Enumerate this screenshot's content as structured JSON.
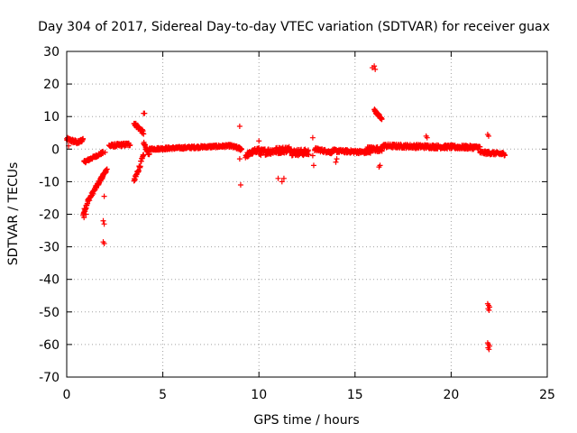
{
  "chart_data": {
    "type": "scatter",
    "title": "Day 304 of 2017, Sidereal Day-to-day VTEC variation (SDTVAR) for receiver guax",
    "xlabel": "GPS time / hours",
    "ylabel": "SDTVAR / TECUs",
    "xlim": [
      0,
      25
    ],
    "ylim": [
      -70,
      30
    ],
    "xticks": [
      "0",
      "5",
      "10",
      "15",
      "20",
      "25"
    ],
    "yticks": [
      "30",
      "20",
      "10",
      "0",
      "-10",
      "-20",
      "-30",
      "-40",
      "-50",
      "-60",
      "-70"
    ],
    "grid": true,
    "marker": "+",
    "series": [
      {
        "name": "SDTVAR",
        "color": "#ff0000",
        "segments": [
          {
            "x0": 0.0,
            "x1": 0.6,
            "y0": 3,
            "y1": 2,
            "jitter": 1.2
          },
          {
            "x0": 0.6,
            "x1": 0.85,
            "y0": 2,
            "y1": 3,
            "jitter": 1.0
          },
          {
            "x0": 0.85,
            "x1": 1.1,
            "y0": -20,
            "y1": -16,
            "jitter": 1.5
          },
          {
            "x0": 1.1,
            "x1": 1.9,
            "y0": -16,
            "y1": -8,
            "jitter": 1.2
          },
          {
            "x0": 0.9,
            "x1": 1.9,
            "y0": -4,
            "y1": -1,
            "jitter": 0.8
          },
          {
            "x0": 1.8,
            "x1": 2.1,
            "y0": -9,
            "y1": -6,
            "jitter": 1.0
          },
          {
            "x0": 2.2,
            "x1": 3.3,
            "y0": 1,
            "y1": 1.5,
            "jitter": 1.0
          },
          {
            "x0": 3.5,
            "x1": 4.0,
            "y0": 8,
            "y1": 5,
            "jitter": 1.2
          },
          {
            "x0": 3.5,
            "x1": 4.0,
            "y0": -10,
            "y1": -2,
            "jitter": 1.5
          },
          {
            "x0": 4.0,
            "x1": 4.3,
            "y0": 2,
            "y1": -2,
            "jitter": 1.0
          },
          {
            "x0": 4.3,
            "x1": 8.5,
            "y0": 0,
            "y1": 1,
            "jitter": 0.8
          },
          {
            "x0": 8.5,
            "x1": 9.1,
            "y0": 1,
            "y1": 0,
            "jitter": 1.0
          },
          {
            "x0": 9.3,
            "x1": 10.0,
            "y0": -2,
            "y1": 0,
            "jitter": 1.5
          },
          {
            "x0": 10.0,
            "x1": 11.7,
            "y0": -1,
            "y1": 0,
            "jitter": 2.0
          },
          {
            "x0": 11.7,
            "x1": 12.6,
            "y0": -1,
            "y1": -1,
            "jitter": 2.0
          },
          {
            "x0": 12.9,
            "x1": 13.8,
            "y0": 0,
            "y1": -1,
            "jitter": 1.0
          },
          {
            "x0": 13.8,
            "x1": 15.8,
            "y0": -0.5,
            "y1": -1,
            "jitter": 1.0
          },
          {
            "x0": 15.6,
            "x1": 16.4,
            "y0": 0,
            "y1": 0,
            "jitter": 1.5
          },
          {
            "x0": 16.0,
            "x1": 16.4,
            "y0": 12,
            "y1": 9,
            "jitter": 1.0
          },
          {
            "x0": 16.4,
            "x1": 21.5,
            "y0": 1,
            "y1": 0.5,
            "jitter": 1.2
          },
          {
            "x0": 21.5,
            "x1": 22.8,
            "y0": -1,
            "y1": -1.5,
            "jitter": 1.0
          }
        ],
        "points": [
          [
            0.1,
            1
          ],
          [
            0.9,
            -21
          ],
          [
            1.0,
            -20
          ],
          [
            1.95,
            -14.5
          ],
          [
            1.9,
            -22
          ],
          [
            1.95,
            -23
          ],
          [
            1.9,
            -28.5
          ],
          [
            1.95,
            -29
          ],
          [
            2.0,
            -1
          ],
          [
            4.0,
            11
          ],
          [
            4.05,
            11
          ],
          [
            9.0,
            7
          ],
          [
            9.05,
            -11
          ],
          [
            9.0,
            -3
          ],
          [
            10.0,
            2.5
          ],
          [
            11.0,
            -9
          ],
          [
            11.2,
            -10
          ],
          [
            11.3,
            -9
          ],
          [
            12.8,
            3.5
          ],
          [
            12.8,
            -2
          ],
          [
            12.85,
            -5
          ],
          [
            14.0,
            -4
          ],
          [
            14.05,
            -3
          ],
          [
            15.9,
            25
          ],
          [
            16.0,
            25.5
          ],
          [
            16.05,
            24.5
          ],
          [
            16.3,
            -5
          ],
          [
            16.25,
            -5.5
          ],
          [
            18.7,
            4
          ],
          [
            18.75,
            3.5
          ],
          [
            21.9,
            4.5
          ],
          [
            21.95,
            4
          ],
          [
            21.9,
            -47.5
          ],
          [
            21.95,
            -48
          ],
          [
            22.0,
            -48.5
          ],
          [
            21.92,
            -49
          ],
          [
            21.97,
            -49.5
          ],
          [
            21.9,
            -59.5
          ],
          [
            21.95,
            -60
          ],
          [
            22.0,
            -60.5
          ],
          [
            21.92,
            -61
          ],
          [
            21.97,
            -61.5
          ]
        ]
      }
    ]
  }
}
